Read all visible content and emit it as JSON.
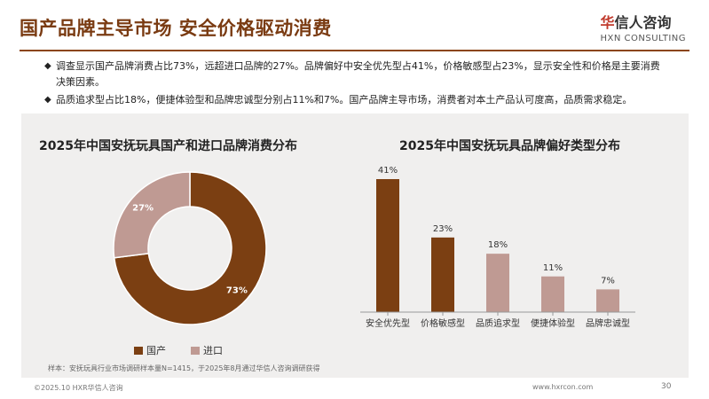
{
  "header": {
    "title": "国产品牌主导市场 安全价格驱动消费",
    "logo_cn_first": "华",
    "logo_cn_rest": "信人咨询",
    "logo_en": "HXN CONSULTING"
  },
  "bullets": [
    "调查显示国产品牌消费占比73%，远超进口品牌的27%。品牌偏好中安全优先型占41%，价格敏感型占23%，显示安全性和价格是主要消费决策因素。",
    "品质追求型占比18%，便捷体验型和品牌忠诚型分别占11%和7%。国产品牌主导市场，消费者对本土产品认可度高，品质需求稳定。"
  ],
  "colors": {
    "brown": "#7b3f12",
    "pink": "#bf9a93",
    "accent": "#8b4513"
  },
  "chart_data": [
    {
      "type": "pie",
      "title": "2025年中国安抚玩具国产和进口品牌消费分布",
      "donut": true,
      "slices": [
        {
          "name": "国产",
          "value": 73,
          "label": "73%",
          "color": "#7b3f12"
        },
        {
          "name": "进口",
          "value": 27,
          "label": "27%",
          "color": "#bf9a93"
        }
      ],
      "legend_position": "bottom"
    },
    {
      "type": "bar",
      "title": "2025年中国安抚玩具品牌偏好类型分布",
      "categories": [
        "安全优先型",
        "价格敏感型",
        "品质追求型",
        "便捷体验型",
        "品牌忠诚型"
      ],
      "values": [
        41,
        23,
        18,
        11,
        7
      ],
      "labels": [
        "41%",
        "23%",
        "18%",
        "11%",
        "7%"
      ],
      "colors": [
        "#7b3f12",
        "#7b3f12",
        "#bf9a93",
        "#bf9a93",
        "#bf9a93"
      ]
    }
  ],
  "footnote": "样本：安抚玩具行业市场调研样本量N=1415，于2025年8月通过华信人咨询调研获得",
  "footer": {
    "copyright": "©2025.10 HXR华信人咨询",
    "url": "www.hxrcon.com",
    "page": "30"
  }
}
